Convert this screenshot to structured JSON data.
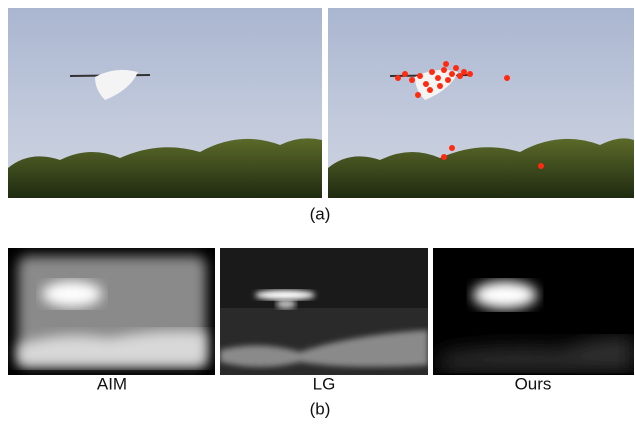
{
  "figure": {
    "panel_a": {
      "label": "(a)"
    },
    "panel_b": {
      "label": "(b)",
      "maps": [
        {
          "label": "AIM"
        },
        {
          "label": "LG"
        },
        {
          "label": "Ours"
        }
      ]
    }
  }
}
